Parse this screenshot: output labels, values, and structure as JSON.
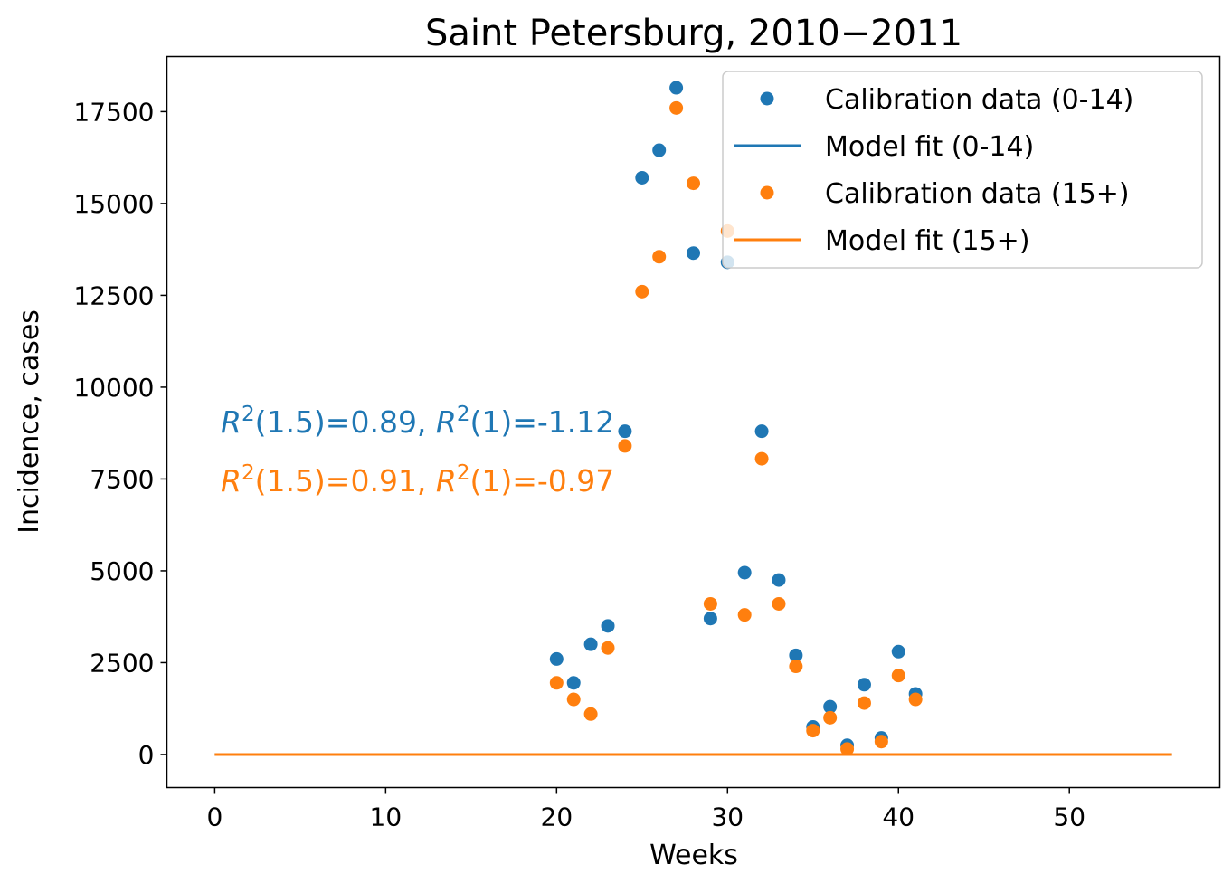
{
  "chart_data": {
    "type": "scatter",
    "title": "Saint Petersburg, 2010−2011",
    "xlabel": "Weeks",
    "ylabel": "Incidence, cases",
    "xlim": [
      -2.8,
      58.8
    ],
    "ylim": [
      -900,
      19000
    ],
    "xticks": [
      0,
      10,
      20,
      30,
      40,
      50
    ],
    "yticks": [
      0,
      2500,
      5000,
      7500,
      10000,
      12500,
      15000,
      17500
    ],
    "grid": false,
    "legend_position": "top-right",
    "series": [
      {
        "name": "Calibration data (0-14)",
        "kind": "points",
        "color": "#1f77b4",
        "x": [
          20,
          21,
          22,
          23,
          24,
          25,
          26,
          27,
          28,
          29,
          30,
          31,
          32,
          33,
          34,
          35,
          36,
          37,
          38,
          39,
          40,
          41
        ],
        "y": [
          2600,
          1950,
          3000,
          3500,
          8800,
          15700,
          16450,
          18150,
          13650,
          3700,
          13400,
          4950,
          8800,
          4750,
          2700,
          750,
          1300,
          250,
          1900,
          450,
          2800,
          1650
        ]
      },
      {
        "name": "Model fit (0-14)",
        "kind": "line",
        "color": "#1f77b4",
        "x": [
          0,
          56
        ],
        "y": [
          0,
          0
        ]
      },
      {
        "name": "Calibration data (15+)",
        "kind": "points",
        "color": "#ff7f0e",
        "x": [
          20,
          21,
          22,
          23,
          24,
          25,
          26,
          27,
          28,
          29,
          30,
          31,
          32,
          33,
          34,
          35,
          36,
          37,
          38,
          39,
          40,
          41
        ],
        "y": [
          1950,
          1500,
          1100,
          2900,
          8400,
          12600,
          13550,
          17600,
          15550,
          4100,
          14250,
          3800,
          8050,
          4100,
          2400,
          650,
          1000,
          150,
          1400,
          350,
          2150,
          1500
        ]
      },
      {
        "name": "Model fit (15+)",
        "kind": "line",
        "color": "#ff7f0e",
        "x": [
          0,
          56
        ],
        "y": [
          0,
          0
        ]
      }
    ],
    "annotations": [
      {
        "color": "#1f77b4",
        "parts": [
          {
            "t": "R",
            "italic": true
          },
          {
            "t": "2",
            "sup": true
          },
          {
            "t": "(1.5)=0.89, "
          },
          {
            "t": "R",
            "italic": true
          },
          {
            "t": "2",
            "sup": true
          },
          {
            "t": "(1)=-1.12"
          }
        ]
      },
      {
        "color": "#ff7f0e",
        "parts": [
          {
            "t": "R",
            "italic": true
          },
          {
            "t": "2",
            "sup": true
          },
          {
            "t": "(1.5)=0.91, "
          },
          {
            "t": "R",
            "italic": true
          },
          {
            "t": "2",
            "sup": true
          },
          {
            "t": "(1)=-0.97"
          }
        ]
      }
    ]
  }
}
